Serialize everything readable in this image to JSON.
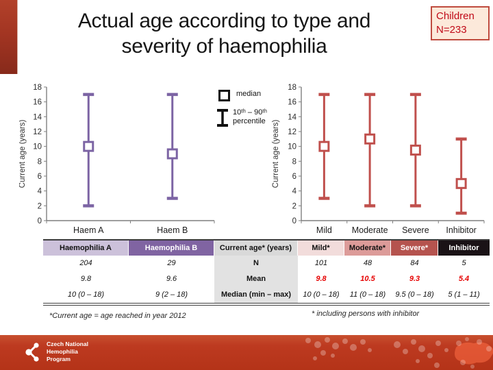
{
  "slide": {
    "title_line1": "Actual age according to type and",
    "title_line2": "severity of haemophilia",
    "badge_line1": "Children",
    "badge_line2": "N=233"
  },
  "legend": {
    "median_label": "median",
    "percentile_line1": "10ᵗʰ – 90ᵗʰ",
    "percentile_line2": "percentile"
  },
  "colors": {
    "purple_series": "#7c64a4",
    "red_series": "#c0504d",
    "mean_value_red": "#e60000",
    "badge_bg": "#fce9da",
    "badge_border": "#bf4b3e",
    "footer_red": "#bd3a20",
    "header_cell_bg": [
      "#ccc1da",
      "#8064a2",
      "#d9d9d9",
      "#f2dcdb",
      "#dc9b99",
      "#b5534e",
      "#1a1216"
    ],
    "header_cell_text": [
      "#111111",
      "#ffffff",
      "#111111",
      "#111111",
      "#111111",
      "#ffffff",
      "#ffffff"
    ]
  },
  "chart_data": [
    {
      "type": "scatter",
      "subtype": "median-with-10th-90th-percentile-errorbars",
      "title": "",
      "xlabel": "",
      "ylabel": "Current age (years)",
      "ylim": [
        0,
        18
      ],
      "ytick_step": 2,
      "grid": false,
      "legend_position": "right-of-plot",
      "categories": [
        "Haem A",
        "Haem B"
      ],
      "series": [
        {
          "name": "median",
          "values": [
            10,
            9
          ]
        },
        {
          "name": "10th percentile",
          "values": [
            2,
            3
          ]
        },
        {
          "name": "90th percentile",
          "values": [
            17,
            17
          ]
        }
      ],
      "color": "#7c64a4"
    },
    {
      "type": "scatter",
      "subtype": "median-with-10th-90th-percentile-errorbars",
      "title": "",
      "xlabel": "",
      "ylabel": "Current age (years)",
      "ylim": [
        0,
        18
      ],
      "ytick_step": 2,
      "grid": false,
      "categories": [
        "Mild",
        "Moderate",
        "Severe",
        "Inhibitor"
      ],
      "series": [
        {
          "name": "median",
          "values": [
            10,
            11,
            9.5,
            5
          ]
        },
        {
          "name": "10th percentile",
          "values": [
            3,
            2,
            2,
            1
          ]
        },
        {
          "name": "90th percentile",
          "values": [
            17,
            17,
            17,
            11
          ]
        }
      ],
      "color": "#c0504d"
    }
  ],
  "table": {
    "headers": [
      "Haemophilia A",
      "Haemophilia B",
      "Current age* (years)",
      "Mild*",
      "Moderate*",
      "Severe*",
      "Inhibitor"
    ],
    "rows": [
      [
        "204",
        "29",
        "N",
        "101",
        "48",
        "84",
        "5"
      ],
      [
        "9.8",
        "9.6",
        "Mean",
        "9.8",
        "10.5",
        "9.3",
        "5.4"
      ],
      [
        "10 (0 – 18)",
        "9 (2 – 18)",
        "Median (min – max)",
        "10 (0 – 18)",
        "11 (0 – 18)",
        "9.5 (0 – 18)",
        "5 (1 – 11)"
      ]
    ],
    "red_value_row_index": 1,
    "red_value_col_start": 3
  },
  "footnotes": {
    "left": "*Current age = age reached in year 2012",
    "right": "* including persons with inhibitor"
  },
  "footer": {
    "org_line1": "Czech National",
    "org_line2": "Hemophilia",
    "org_line3": "Program"
  }
}
